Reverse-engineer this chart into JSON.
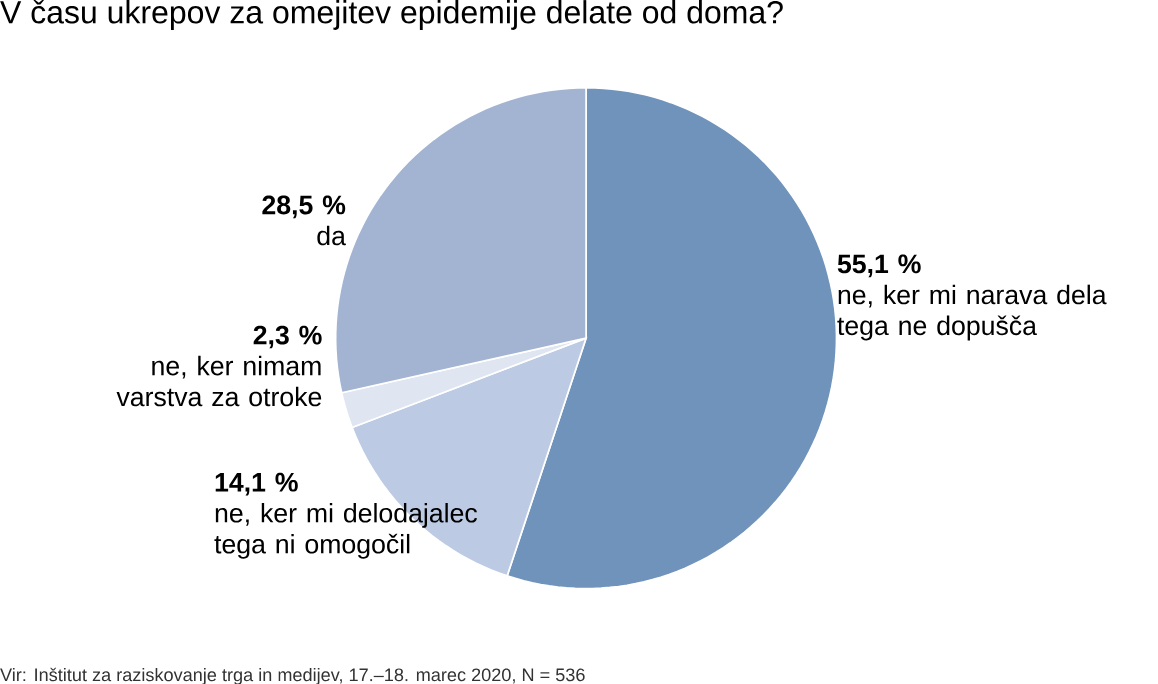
{
  "chart_data": {
    "type": "pie",
    "title": "V času ukrepov za omejitev epidemije delate od doma?",
    "categories": [
      "ne, ker mi narava dela tega ne dopušča",
      "ne, ker mi delodajalec tega ni omogočil",
      "ne, ker nimam varstva za otroke",
      "da"
    ],
    "values": [
      55.1,
      14.1,
      2.3,
      28.5
    ],
    "value_labels": [
      "55,1 %",
      "14,1 %",
      "2,3 %",
      "28,5 %"
    ],
    "colors": [
      "#6f93bb",
      "#bccbe3",
      "#dfe6f1",
      "#a3b4d2"
    ],
    "annotations": [
      "Vir: Inštitut za raziskovanje trga in medijev, 17.–18. marec 2020, N = 536"
    ]
  }
}
